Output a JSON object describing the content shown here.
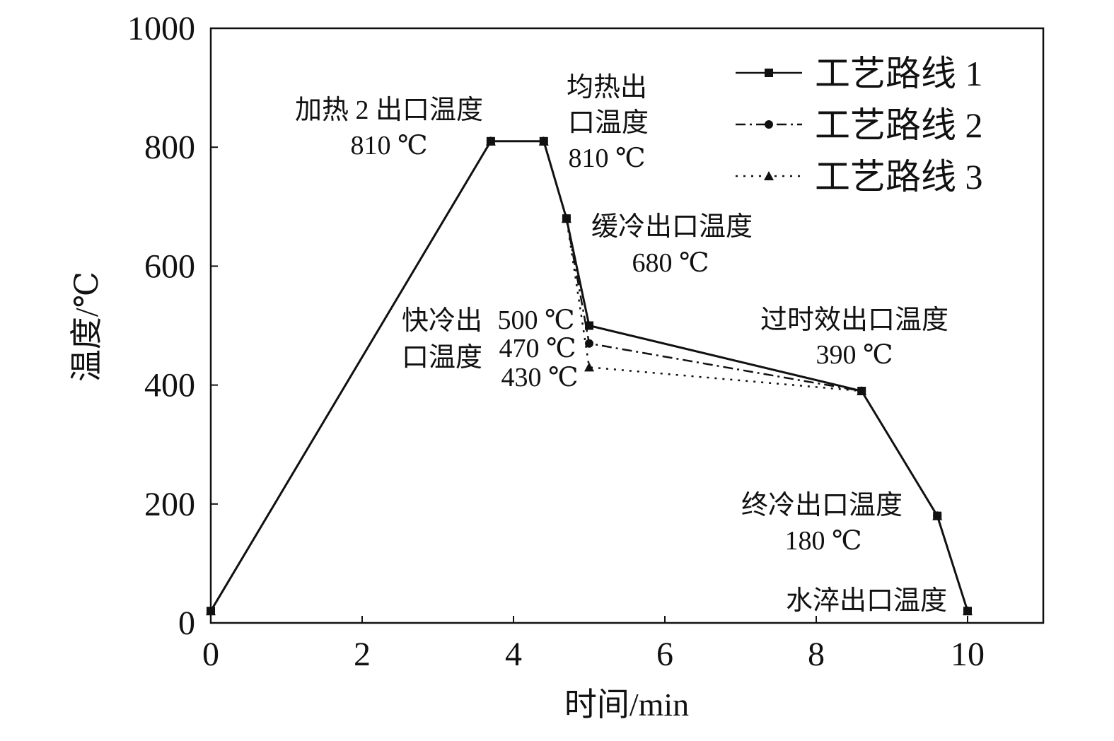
{
  "chart_data": {
    "type": "line",
    "xlabel": "时间/min",
    "ylabel": "温度/℃",
    "xlim": [
      0,
      11
    ],
    "ylim": [
      0,
      1000
    ],
    "xticks": [
      0,
      2,
      4,
      6,
      8,
      10
    ],
    "yticks": [
      0,
      200,
      400,
      600,
      800,
      1000
    ],
    "grid": false,
    "legend_position": "top-right",
    "series": [
      {
        "name": "工艺路线 1",
        "style": "solid",
        "marker": "square",
        "x": [
          0,
          3.7,
          4.4,
          4.7,
          5.0,
          8.6,
          9.6,
          10.0
        ],
        "y": [
          20,
          810,
          810,
          680,
          500,
          390,
          180,
          20
        ]
      },
      {
        "name": "工艺路线 2",
        "style": "dashdot",
        "marker": "circle",
        "x": [
          0,
          3.7,
          4.4,
          4.7,
          5.0,
          8.6,
          9.6,
          10.0
        ],
        "y": [
          20,
          810,
          810,
          680,
          470,
          390,
          180,
          20
        ]
      },
      {
        "name": "工艺路线 3",
        "style": "dotted",
        "marker": "triangle",
        "x": [
          0,
          3.7,
          4.4,
          4.7,
          5.0,
          8.6,
          9.6,
          10.0
        ],
        "y": [
          20,
          810,
          810,
          680,
          430,
          390,
          180,
          20
        ]
      }
    ],
    "annotations": [
      {
        "lines": [
          "加热 2 出口温度",
          "810 ℃"
        ]
      },
      {
        "lines": [
          "均热出",
          "口温度",
          "810 ℃"
        ]
      },
      {
        "lines": [
          "缓冷出口温度",
          "680 ℃"
        ]
      },
      {
        "lines": [
          "快冷出",
          "口温度"
        ]
      },
      {
        "lines": [
          "500 ℃",
          "470 ℃",
          "430 ℃"
        ]
      },
      {
        "lines": [
          "过时效出口温度",
          "390 ℃"
        ]
      },
      {
        "lines": [
          "终冷出口温度",
          "180 ℃"
        ]
      },
      {
        "lines": [
          "水淬出口温度"
        ]
      }
    ]
  }
}
